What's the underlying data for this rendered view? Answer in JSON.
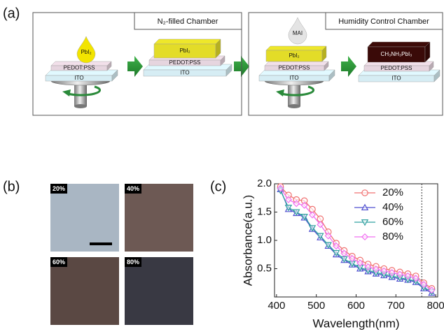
{
  "panel_a": {
    "label": "(a)",
    "chamber_1": "N₂-filled Chamber",
    "chamber_2": "Humidity Control Chamber",
    "drop_1": "PbI₂",
    "drop_2": "MAI",
    "stack_1": [
      "PEDOT:PSS",
      "ITO"
    ],
    "stack_2": [
      "PbI₂",
      "PEDOT:PSS",
      "ITO"
    ],
    "stack_3": [
      "PbI₂",
      "PEDOT:PSS",
      "ITO"
    ],
    "stack_4": [
      "CH₃NH₃PbI₃",
      "PEDOT:PSS",
      "ITO"
    ]
  },
  "panel_b": {
    "label": "(b)",
    "images": [
      "20%",
      "40%",
      "60%",
      "80%"
    ]
  },
  "chart_data": {
    "type": "line",
    "panel_label": "(c)",
    "xlabel": "Wavelength(nm)",
    "ylabel": "Absorbance(a.u.)",
    "x": [
      410,
      430,
      450,
      470,
      490,
      510,
      530,
      550,
      570,
      590,
      610,
      630,
      650,
      670,
      690,
      710,
      730,
      750,
      770,
      790
    ],
    "xlim": [
      395,
      805
    ],
    "xticks": [
      400,
      500,
      600,
      700,
      800
    ],
    "ylim": [
      0,
      2
    ],
    "yticks": [
      {
        "value": 0.5,
        "label": "0.5"
      },
      {
        "value": 1,
        "label": "1.0"
      },
      {
        "value": 1.5,
        "label": "1.5"
      },
      {
        "value": 2,
        "label": "2.0"
      }
    ],
    "vline": 765,
    "legend": "upper right",
    "series": [
      {
        "name": "20%",
        "color": "#f07070",
        "marker": "o",
        "values": [
          1.95,
          1.8,
          1.72,
          1.7,
          1.55,
          1.38,
          1.15,
          0.95,
          0.82,
          0.72,
          0.65,
          0.58,
          0.54,
          0.5,
          0.47,
          0.44,
          0.41,
          0.37,
          0.25,
          0.15
        ]
      },
      {
        "name": "40%",
        "color": "#5050d0",
        "marker": "^",
        "values": [
          1.9,
          1.55,
          1.48,
          1.4,
          1.2,
          1.05,
          0.9,
          0.75,
          0.65,
          0.57,
          0.5,
          0.45,
          0.41,
          0.38,
          0.35,
          0.32,
          0.3,
          0.26,
          0.15,
          0.07
        ]
      },
      {
        "name": "60%",
        "color": "#30a0a0",
        "marker": "v",
        "values": [
          1.88,
          1.58,
          1.5,
          1.42,
          1.22,
          1.08,
          0.92,
          0.78,
          0.67,
          0.59,
          0.52,
          0.47,
          0.43,
          0.4,
          0.37,
          0.34,
          0.31,
          0.28,
          0.17,
          0.09
        ]
      },
      {
        "name": "80%",
        "color": "#f070f0",
        "marker": "D",
        "values": [
          1.92,
          1.72,
          1.65,
          1.62,
          1.45,
          1.28,
          1.08,
          0.9,
          0.77,
          0.68,
          0.6,
          0.53,
          0.49,
          0.46,
          0.43,
          0.4,
          0.37,
          0.33,
          0.22,
          0.12
        ]
      }
    ]
  }
}
